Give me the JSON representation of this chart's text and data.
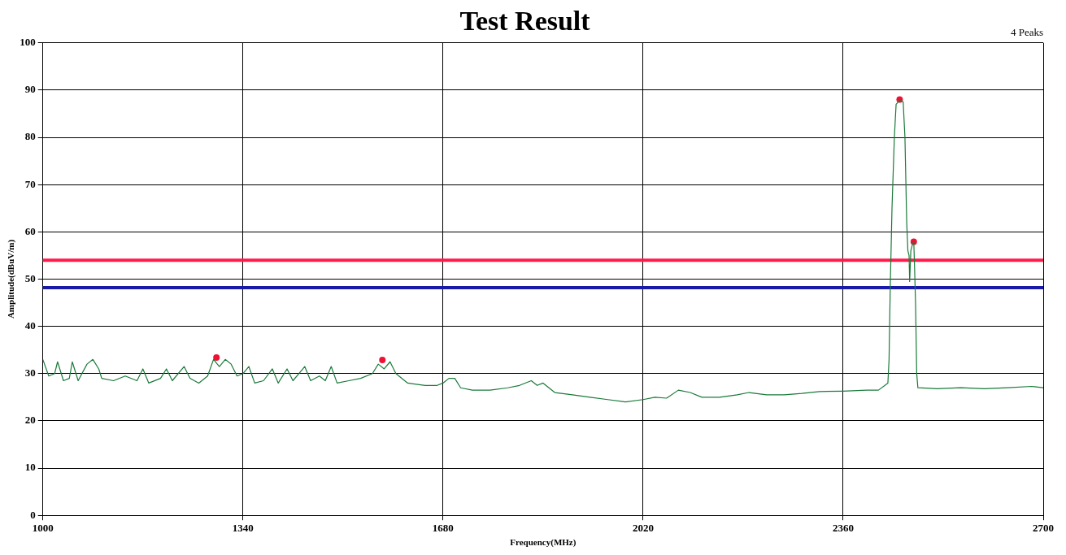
{
  "chart_data": {
    "type": "line",
    "title": "Test Result",
    "xlabel": "Frequency(MHz)",
    "ylabel": "Amplitude(dBuV/m)",
    "annotations": [
      "4 Peaks"
    ],
    "xlim": [
      1000,
      2700
    ],
    "xticks": [
      1000,
      1340,
      1680,
      2020,
      2360,
      2700
    ],
    "ylim": [
      0,
      100
    ],
    "yticks": [
      0,
      10,
      20,
      30,
      40,
      50,
      60,
      70,
      80,
      90,
      100
    ],
    "grid": true,
    "legend": false,
    "ref_lines": [
      {
        "axis": "y",
        "value": 54,
        "color": "#ff1a4a"
      },
      {
        "axis": "y",
        "value": 48.2,
        "color": "#1a1aa8"
      }
    ],
    "series": [
      {
        "type": "line",
        "marker": "none",
        "color": "#1a7a3a",
        "x": [
          1000,
          1010,
          1020,
          1025,
          1035,
          1045,
          1050,
          1060,
          1075,
          1085,
          1095,
          1100,
          1120,
          1140,
          1160,
          1170,
          1180,
          1200,
          1210,
          1220,
          1240,
          1250,
          1265,
          1280,
          1290,
          1300,
          1310,
          1320,
          1330,
          1340,
          1350,
          1360,
          1375,
          1390,
          1400,
          1415,
          1425,
          1435,
          1445,
          1455,
          1470,
          1480,
          1490,
          1500,
          1520,
          1540,
          1560,
          1570,
          1580,
          1590,
          1600,
          1620,
          1650,
          1670,
          1680,
          1690,
          1700,
          1710,
          1730,
          1760,
          1790,
          1810,
          1830,
          1840,
          1850,
          1870,
          1900,
          1930,
          1960,
          1990,
          2020,
          2040,
          2060,
          2080,
          2100,
          2120,
          2150,
          2180,
          2200,
          2230,
          2260,
          2290,
          2320,
          2360,
          2400,
          2420,
          2436,
          2438,
          2440,
          2443,
          2447,
          2450,
          2457,
          2462,
          2465,
          2468,
          2470,
          2472,
          2473,
          2475,
          2478,
          2480,
          2481,
          2483,
          2485,
          2487,
          2520,
          2560,
          2600,
          2640,
          2680,
          2700
        ],
        "values": [
          33,
          29.5,
          30,
          32.5,
          28.5,
          29,
          32.5,
          28.5,
          32,
          33,
          31,
          29,
          28.5,
          29.5,
          28.5,
          31,
          28,
          29,
          31,
          28.5,
          31.5,
          29,
          28,
          29.5,
          33,
          31.5,
          33,
          32,
          29.5,
          30,
          31.5,
          28,
          28.5,
          31,
          28,
          31,
          28.5,
          30,
          31.5,
          28.5,
          29.5,
          28.5,
          31.5,
          28,
          28.5,
          29,
          30,
          32,
          31,
          32.5,
          30,
          28,
          27.5,
          27.5,
          28,
          29,
          29,
          27,
          26.5,
          26.5,
          27,
          27.5,
          28.5,
          27.5,
          28,
          26,
          25.5,
          25,
          24.5,
          24,
          24.5,
          25,
          24.8,
          26.5,
          26,
          25,
          25,
          25.5,
          26,
          25.5,
          25.5,
          25.8,
          26.2,
          26.3,
          26.5,
          26.5,
          28,
          33,
          48,
          65,
          80,
          87,
          88,
          87.5,
          80,
          62,
          56,
          55,
          49.5,
          56,
          57.5,
          57.9,
          54,
          45,
          30,
          27,
          26.8,
          27,
          26.8,
          27,
          27.3,
          27
        ]
      },
      {
        "type": "scatter",
        "marker": "circle",
        "color": "#ee1133",
        "x": [
          1295,
          1577,
          2456,
          2480
        ],
        "values": [
          33.4,
          32.9,
          88,
          57.9
        ]
      }
    ]
  }
}
